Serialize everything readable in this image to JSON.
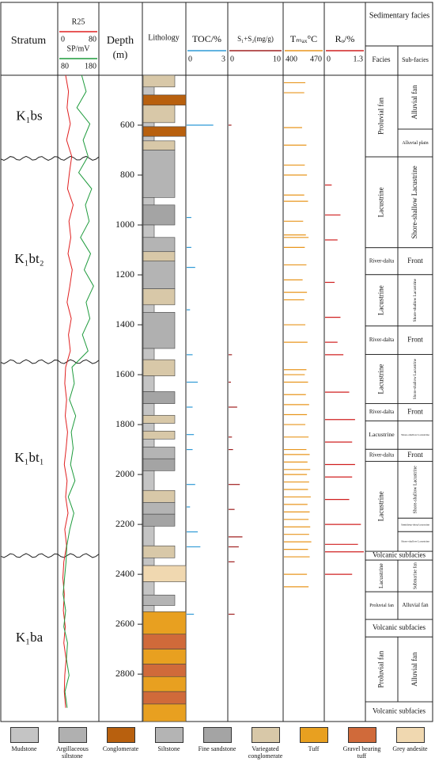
{
  "header": {
    "stratum": "Stratum",
    "depth": "Depth",
    "depth_unit": "(m)",
    "lithology": "Lithology",
    "sedimentary_facies": "Sedimentary facies",
    "facies": "Facies",
    "sub_facies": "Sub-facies"
  },
  "depth_axis": {
    "ylim": [
      400,
      2990
    ],
    "yticks": [
      600,
      800,
      1000,
      1200,
      1400,
      1600,
      1800,
      2000,
      2200,
      2400,
      2600,
      2800
    ]
  },
  "strata": [
    {
      "label": "K₁bs",
      "top": 400,
      "base": 733
    },
    {
      "label": "K₁bt₂",
      "top": 733,
      "base": 1548
    },
    {
      "label": "K₁bt₁",
      "top": 1548,
      "base": 2325
    },
    {
      "label": "K₁ba",
      "top": 2325,
      "base": 2990
    }
  ],
  "logs": {
    "depth": [
      400,
      465,
      530,
      595,
      660,
      725,
      790,
      855,
      920,
      985,
      1050,
      1115,
      1180,
      1245,
      1310,
      1375,
      1440,
      1505,
      1570,
      1635,
      1700,
      1765,
      1830,
      1895,
      1960,
      2025,
      2090,
      2155,
      2220,
      2285,
      2350,
      2415,
      2480,
      2545,
      2610,
      2675,
      2740,
      2805,
      2870,
      2935
    ],
    "r25": {
      "name": "R25",
      "color": "#e02020",
      "xlim": [
        0,
        80
      ],
      "values": [
        12,
        18,
        15,
        22,
        14,
        25,
        20,
        16,
        28,
        19,
        23,
        17,
        26,
        21,
        15,
        24,
        18,
        22,
        12,
        10,
        14,
        11,
        16,
        13,
        9,
        15,
        12,
        17,
        10,
        14,
        8,
        6,
        9,
        7,
        11,
        8,
        13,
        10,
        9,
        12
      ]
    },
    "sp": {
      "name": "SP/mV",
      "color": "#1e9b3c",
      "xlim": [
        80,
        180
      ],
      "values": [
        138,
        150,
        125,
        160,
        142,
        155,
        130,
        165,
        148,
        158,
        135,
        162,
        145,
        170,
        150,
        160,
        140,
        155,
        112,
        118,
        105,
        122,
        110,
        115,
        108,
        120,
        102,
        117,
        106,
        98,
        96,
        92,
        88,
        95,
        90,
        100,
        97,
        104,
        93,
        99
      ]
    }
  },
  "geochem": [
    {
      "name": "TOC/%",
      "color": "#2f9ad6",
      "xlim": [
        0,
        3
      ],
      "depth": [
        600,
        970,
        1090,
        1170,
        1340,
        1520,
        1630,
        1730,
        1840,
        1900,
        2040,
        2130,
        2230,
        2290,
        2560
      ],
      "values": [
        2.0,
        0.3,
        0.3,
        0.6,
        0.2,
        0.4,
        0.8,
        0.4,
        0.5,
        0.4,
        0.6,
        0.2,
        0.8,
        1.0,
        0.5
      ]
    },
    {
      "name": "S₁+S₂(mg/g)",
      "color": "#a02020",
      "xlim": [
        0,
        10
      ],
      "depth": [
        600,
        1520,
        1630,
        1730,
        1850,
        1900,
        2040,
        2140,
        2250,
        2290,
        2350,
        2560
      ],
      "values": [
        0.4,
        0.5,
        0.3,
        1.5,
        0.5,
        0.7,
        2.0,
        1.0,
        2.5,
        1.8,
        1.0,
        1.0
      ]
    },
    {
      "name": "Tₘₐₓ°C",
      "color": "#e8961e",
      "xlim": [
        400,
        470
      ],
      "depth": [
        430,
        470,
        610,
        680,
        760,
        800,
        880,
        905,
        985,
        1040,
        1050,
        1090,
        1160,
        1220,
        1270,
        1300,
        1400,
        1470,
        1580,
        1600,
        1630,
        1680,
        1720,
        1760,
        1800,
        1850,
        1900,
        1920,
        1950,
        1980,
        2000,
        2030,
        2060,
        2090,
        2120,
        2150,
        2180,
        2210,
        2240,
        2270,
        2300,
        2330,
        2400,
        2450
      ],
      "values": [
        438,
        436,
        432,
        440,
        437,
        441,
        436,
        443,
        434,
        439,
        444,
        437,
        440,
        433,
        441,
        436,
        438,
        442,
        440,
        437,
        443,
        439,
        445,
        441,
        438,
        444,
        440,
        446,
        442,
        447,
        441,
        445,
        443,
        448,
        442,
        446,
        444,
        447,
        445,
        449,
        443,
        446,
        441,
        444
      ]
    },
    {
      "name": "Rₒ/%",
      "color": "#d02020",
      "xlim": [
        0,
        1.3
      ],
      "depth": [
        840,
        960,
        1060,
        1230,
        1370,
        1470,
        1520,
        1670,
        1780,
        1870,
        1960,
        2010,
        2100,
        2200,
        2280,
        2310,
        2400
      ],
      "values": [
        0.2,
        0.5,
        0.4,
        0.3,
        0.5,
        0.4,
        0.6,
        0.8,
        1.0,
        0.9,
        1.0,
        0.9,
        0.8,
        1.2,
        1.1,
        1.3,
        0.9
      ]
    }
  ],
  "lithology": {
    "legend": [
      {
        "name": "Mudstone",
        "color": "#c4c4c4"
      },
      {
        "name": "Argillaceous siltstone",
        "color": "#b0b0b0"
      },
      {
        "name": "Conglomerate",
        "color": "#b8600e"
      },
      {
        "name": "Siltstone",
        "color": "#b4b4b4"
      },
      {
        "name": "Fine sandstone",
        "color": "#a4a4a4"
      },
      {
        "name": "Variegated conglomerate",
        "color": "#d8c8a8"
      },
      {
        "name": "Tuff",
        "color": "#e8a020"
      },
      {
        "name": "Gravel bearing tuff",
        "color": "#d06a3a"
      },
      {
        "name": "Grey andesite",
        "color": "#f0d8b0"
      }
    ],
    "layers": [
      {
        "top": 400,
        "base": 447,
        "rock": "Variegated conglomerate"
      },
      {
        "top": 447,
        "base": 479,
        "rock": "Mudstone"
      },
      {
        "top": 479,
        "base": 520,
        "rock": "Conglomerate"
      },
      {
        "top": 520,
        "base": 590,
        "rock": "Variegated conglomerate"
      },
      {
        "top": 590,
        "base": 606,
        "rock": "Mudstone"
      },
      {
        "top": 606,
        "base": 645,
        "rock": "Conglomerate"
      },
      {
        "top": 645,
        "base": 663,
        "rock": "Mudstone"
      },
      {
        "top": 663,
        "base": 700,
        "rock": "Variegated conglomerate"
      },
      {
        "top": 700,
        "base": 890,
        "rock": "Siltstone"
      },
      {
        "top": 890,
        "base": 920,
        "rock": "Mudstone"
      },
      {
        "top": 920,
        "base": 1000,
        "rock": "Fine sandstone"
      },
      {
        "top": 1000,
        "base": 1050,
        "rock": "Mudstone"
      },
      {
        "top": 1050,
        "base": 1107,
        "rock": "Siltstone"
      },
      {
        "top": 1107,
        "base": 1145,
        "rock": "Variegated conglomerate"
      },
      {
        "top": 1145,
        "base": 1256,
        "rock": "Siltstone"
      },
      {
        "top": 1256,
        "base": 1320,
        "rock": "Variegated conglomerate"
      },
      {
        "top": 1320,
        "base": 1350,
        "rock": "Mudstone"
      },
      {
        "top": 1350,
        "base": 1495,
        "rock": "Argillaceous siltstone"
      },
      {
        "top": 1495,
        "base": 1540,
        "rock": "Mudstone"
      },
      {
        "top": 1540,
        "base": 1605,
        "rock": "Variegated conglomerate"
      },
      {
        "top": 1605,
        "base": 1668,
        "rock": "Mudstone"
      },
      {
        "top": 1668,
        "base": 1716,
        "rock": "Fine sandstone"
      },
      {
        "top": 1716,
        "base": 1763,
        "rock": "Mudstone"
      },
      {
        "top": 1763,
        "base": 1795,
        "rock": "Variegated conglomerate"
      },
      {
        "top": 1795,
        "base": 1826,
        "rock": "Mudstone"
      },
      {
        "top": 1826,
        "base": 1858,
        "rock": "Variegated conglomerate"
      },
      {
        "top": 1858,
        "base": 1890,
        "rock": "Mudstone"
      },
      {
        "top": 1890,
        "base": 1937,
        "rock": "Siltstone"
      },
      {
        "top": 1937,
        "base": 1985,
        "rock": "Fine sandstone"
      },
      {
        "top": 1985,
        "base": 2064,
        "rock": "Mudstone"
      },
      {
        "top": 2064,
        "base": 2112,
        "rock": "Variegated conglomerate"
      },
      {
        "top": 2112,
        "base": 2159,
        "rock": "Siltstone"
      },
      {
        "top": 2159,
        "base": 2207,
        "rock": "Fine sandstone"
      },
      {
        "top": 2207,
        "base": 2286,
        "rock": "Mudstone"
      },
      {
        "top": 2286,
        "base": 2334,
        "rock": "Variegated conglomerate"
      },
      {
        "top": 2334,
        "base": 2365,
        "rock": "Mudstone"
      },
      {
        "top": 2365,
        "base": 2430,
        "rock": "Grey andesite"
      },
      {
        "top": 2430,
        "base": 2483,
        "rock": "Mudstone"
      },
      {
        "top": 2483,
        "base": 2525,
        "rock": "Siltstone"
      },
      {
        "top": 2525,
        "base": 2550,
        "rock": "Mudstone"
      },
      {
        "top": 2550,
        "base": 2640,
        "rock": "Tuff"
      },
      {
        "top": 2640,
        "base": 2700,
        "rock": "Gravel bearing tuff"
      },
      {
        "top": 2700,
        "base": 2760,
        "rock": "Tuff"
      },
      {
        "top": 2760,
        "base": 2810,
        "rock": "Gravel bearing tuff"
      },
      {
        "top": 2810,
        "base": 2870,
        "rock": "Tuff"
      },
      {
        "top": 2870,
        "base": 2920,
        "rock": "Gravel bearing tuff"
      },
      {
        "top": 2920,
        "base": 2990,
        "rock": "Tuff"
      }
    ]
  },
  "facies": [
    {
      "facies": "Proluvial fan",
      "top": 400,
      "base": 727,
      "subfacies": [
        {
          "label": "Alluvial fan",
          "top": 400,
          "base": 616
        },
        {
          "label": "Alluvial plain",
          "top": 616,
          "base": 727
        }
      ]
    },
    {
      "facies": "Lacustrine",
      "top": 727,
      "base": 1091,
      "subfacies": [
        {
          "label": "Shore-shallow Lacustrine",
          "top": 727,
          "base": 1091
        }
      ]
    },
    {
      "facies": "River-dalta",
      "top": 1091,
      "base": 1199,
      "subfacies": [
        {
          "label": "Front",
          "top": 1091,
          "base": 1199
        }
      ]
    },
    {
      "facies": "Lacustrine",
      "top": 1199,
      "base": 1405,
      "subfacies": [
        {
          "label": "Shore-shallow Lacustrine",
          "top": 1199,
          "base": 1405
        }
      ]
    },
    {
      "facies": "River-dalta",
      "top": 1405,
      "base": 1519,
      "subfacies": [
        {
          "label": "Front",
          "top": 1405,
          "base": 1519
        }
      ]
    },
    {
      "facies": "Lacustrine",
      "top": 1519,
      "base": 1716,
      "subfacies": [
        {
          "label": "Shore-shallow Lacustrine",
          "top": 1519,
          "base": 1716
        }
      ]
    },
    {
      "facies": "River-dalta",
      "top": 1716,
      "base": 1785,
      "subfacies": [
        {
          "label": "Front",
          "top": 1716,
          "base": 1785
        }
      ]
    },
    {
      "facies": "Lacustrine",
      "top": 1785,
      "base": 1899,
      "subfacies": [
        {
          "label": "Shore-shallow Lacustrine",
          "top": 1785,
          "base": 1899
        }
      ]
    },
    {
      "facies": "River-dalta",
      "top": 1899,
      "base": 1947,
      "subfacies": [
        {
          "label": "Front",
          "top": 1899,
          "base": 1947
        }
      ]
    },
    {
      "facies": "Lacustrine",
      "top": 1947,
      "base": 2308,
      "subfacies": [
        {
          "label": "Shore-shallow Lacustrine",
          "top": 1947,
          "base": 2175
        },
        {
          "label": "Semideep-deep lacustrine",
          "top": 2175,
          "base": 2229
        },
        {
          "label": "Shore-shallow Lacustrine",
          "top": 2229,
          "base": 2308
        }
      ]
    },
    {
      "facies": "Volcanic subfacies",
      "top": 2308,
      "base": 2343
    },
    {
      "facies": "Lacustrine",
      "top": 2343,
      "base": 2470,
      "subfacies": [
        {
          "label": "Submarine fan",
          "top": 2343,
          "base": 2470
        }
      ]
    },
    {
      "facies": "Proluvial fan",
      "top": 2470,
      "base": 2581,
      "subfacies": [
        {
          "label": "Alluvial fan",
          "top": 2470,
          "base": 2581
        }
      ]
    },
    {
      "facies": "Volcanic subfacies",
      "top": 2581,
      "base": 2651
    },
    {
      "facies": "Proluvial fan",
      "top": 2651,
      "base": 2911,
      "subfacies": [
        {
          "label": "Alluvial fan",
          "top": 2651,
          "base": 2911
        }
      ]
    },
    {
      "facies": "Volcanic subfacies",
      "top": 2911,
      "base": 2990
    }
  ]
}
